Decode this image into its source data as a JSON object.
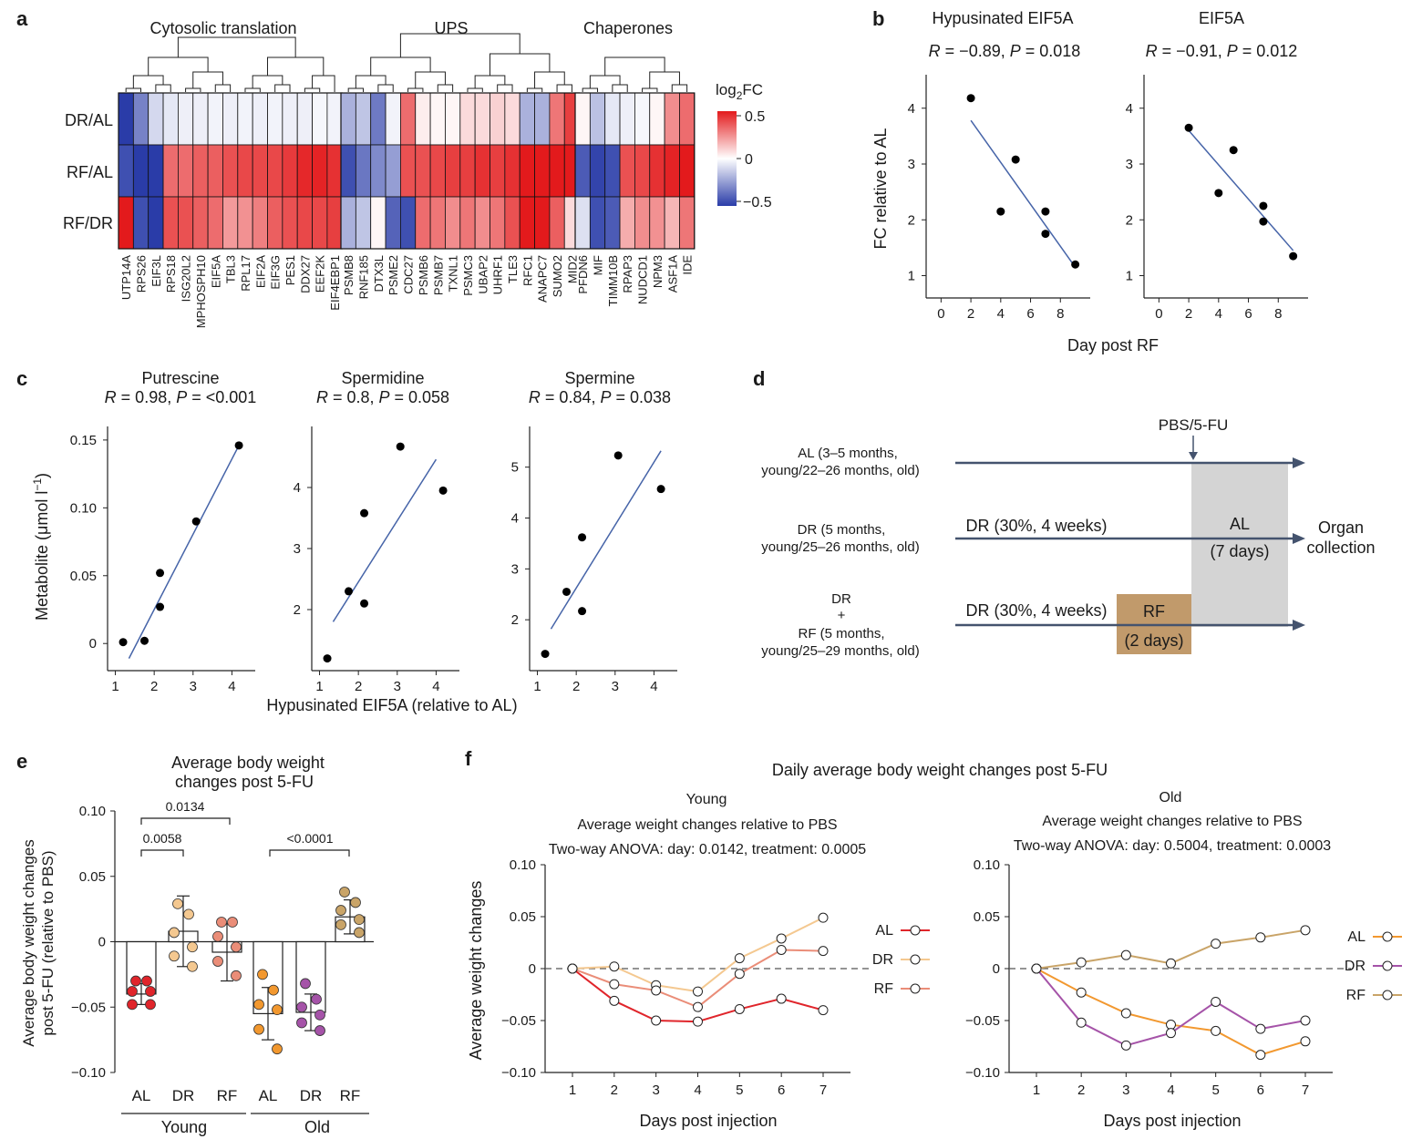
{
  "colors": {
    "red": "#d8262b",
    "blue": "#3d4aa8",
    "line_blue": "#4664a8",
    "arrow": "#44536e",
    "AL_young": "#e0252b",
    "DR_young": "#f4c890",
    "RF_young": "#ea8d78",
    "AL_old": "#f2982f",
    "DR_old": "#a553a8",
    "RF_old": "#c9a468",
    "gray_box": "#d4d4d4",
    "rf_box": "#c19a6b"
  },
  "panel_a": {
    "letter": "a",
    "groups": [
      "Cytosolic translation",
      "UPS",
      "Chaperones"
    ],
    "legend_title_main": "log",
    "legend_title_sub": "2",
    "legend_title_end": "FC",
    "legend_ticks": [
      "0.5",
      "0",
      "−0.5"
    ],
    "rows": [
      "DR/AL",
      "RF/AL",
      "RF/DR"
    ],
    "blocks": [
      {
        "genes": [
          "UTP14A",
          "RPS26",
          "EIF3L",
          "RPS18",
          "ISG20L2",
          "MPHOSPH10",
          "EIF5A",
          "TBL3",
          "RPL17",
          "EIF2A",
          "EIF3G",
          "PES1",
          "DDX27",
          "EEF2K",
          "EIF4EBP1"
        ],
        "values": [
          [
            -0.5,
            -0.32,
            -0.1,
            -0.06,
            -0.04,
            -0.04,
            -0.03,
            -0.04,
            -0.03,
            -0.04,
            -0.03,
            -0.04,
            -0.04,
            -0.02,
            -0.03
          ],
          [
            -0.45,
            -0.5,
            -0.52,
            0.32,
            0.32,
            0.35,
            0.35,
            0.38,
            0.4,
            0.4,
            0.4,
            0.43,
            0.47,
            0.48,
            0.45
          ],
          [
            0.55,
            -0.45,
            -0.5,
            0.38,
            0.38,
            0.35,
            0.32,
            0.22,
            0.24,
            0.28,
            0.35,
            0.38,
            0.4,
            0.4,
            0.42
          ]
        ],
        "dendrogram": "0,1|2,3|4,5|4,5|6,7|6,7|8,9|10,11|10,11|12,13|13,14"
      },
      {
        "genes": [
          "PSMB8",
          "RNF185",
          "DTX3L",
          "PSME2",
          "CDC27",
          "PSMB6",
          "PSMB7",
          "TXNL1",
          "PSMC3",
          "UBAP2",
          "UHRF1",
          "TLE3",
          "RFC1",
          "ANAPC7",
          "SUMO2",
          "MID2"
        ],
        "values": [
          [
            -0.2,
            -0.15,
            -0.34,
            -0.03,
            0.32,
            0.04,
            0.02,
            0.02,
            0.08,
            0.08,
            0.1,
            0.08,
            -0.2,
            -0.2,
            0.3,
            0.42
          ],
          [
            -0.45,
            -0.35,
            -0.3,
            -0.25,
            0.38,
            0.38,
            0.4,
            0.42,
            0.42,
            0.45,
            0.42,
            0.45,
            0.5,
            0.5,
            0.55,
            0.58
          ],
          [
            -0.2,
            -0.15,
            0.02,
            -0.4,
            -0.45,
            0.32,
            0.3,
            0.25,
            0.3,
            0.25,
            0.3,
            0.38,
            0.5,
            0.55,
            0.35,
            0.08
          ]
        ]
      },
      {
        "genes": [
          "PFDN6",
          "MIF",
          "TIMM10B",
          "RPAP3",
          "NUDCD1",
          "NPM3",
          "ASF1A",
          "IDE"
        ],
        "values": [
          [
            0.02,
            -0.16,
            -0.06,
            -0.04,
            -0.02,
            0.02,
            0.25,
            0.32
          ],
          [
            -0.42,
            -0.48,
            -0.45,
            0.38,
            0.4,
            0.45,
            0.48,
            0.52
          ],
          [
            -0.08,
            -0.45,
            -0.42,
            0.18,
            0.25,
            0.24,
            0.16,
            0.3
          ]
        ]
      }
    ]
  },
  "panel_b": {
    "letter": "b",
    "ylabel": "FC relative to AL",
    "xlabel": "Day post RF",
    "plots": [
      {
        "title": "Hypusinated EIF5A",
        "stat_r": "R",
        "stat_r_val": " = −0.89, ",
        "stat_p": "P",
        "stat_p_val": " = 0.018"
      },
      {
        "title": "EIF5A",
        "stat_r": "R",
        "stat_r_val": " = −0.91, ",
        "stat_p": "P",
        "stat_p_val": " = 0.012"
      }
    ],
    "xticks": [
      "0",
      "2",
      "4",
      "6",
      "8"
    ],
    "yticks": [
      "1",
      "2",
      "3",
      "4"
    ]
  },
  "panel_c": {
    "letter": "c",
    "ylabel": "Metabolite (μmol l",
    "ylabel_sup": "−1",
    "ylabel_end": ")",
    "xlabel": "Hypusinated EIF5A (relative to AL)",
    "plots": [
      {
        "title": "Putrescine",
        "stat_r": "R",
        "stat_r_val": " = 0.98, ",
        "stat_p": "P",
        "stat_p_val": " = <0.001",
        "yticks": [
          "0",
          "0.05",
          "0.10",
          "0.15"
        ]
      },
      {
        "title": "Spermidine",
        "stat_r": "R",
        "stat_r_val": " = 0.8, ",
        "stat_p": "P",
        "stat_p_val": " = 0.058",
        "yticks": [
          "2",
          "3",
          "4"
        ]
      },
      {
        "title": "Spermine",
        "stat_r": "R",
        "stat_r_val": " = 0.84, ",
        "stat_p": "P",
        "stat_p_val": " = 0.038",
        "yticks": [
          "2",
          "3",
          "4",
          "5"
        ]
      }
    ],
    "xticks": [
      "1",
      "2",
      "3",
      "4"
    ]
  },
  "panel_d": {
    "letter": "d",
    "injection": "PBS/5-FU",
    "al_label_1": "AL (3–5 months,",
    "al_label_2": "young/22–26 months, old)",
    "dr_label_1": "DR (5 months,",
    "dr_label_2": "young/25–26 months, old)",
    "rf_label_1": "DR",
    "rf_label_2": "+",
    "rf_label_3": "RF (5 months,",
    "rf_label_4": "young/25–29 months, old)",
    "dr_regimen": "DR (30%, 4 weeks)",
    "dr_regimen_2": "DR (30%, 4 weeks)",
    "al_box_1": "AL",
    "al_box_2": "(7 days)",
    "rf_box_1": "RF",
    "rf_box_2": "(2 days)",
    "end_1": "Organ",
    "end_2": "collection"
  },
  "panel_e": {
    "letter": "e",
    "title_1": "Average body weight",
    "title_2": "changes post 5-FU",
    "ylabel_1": "Average body weight changes",
    "ylabel_2": "post 5-FU (relative to PBS)",
    "yticks": [
      "0.10",
      "0.05",
      "0",
      "−0.05",
      "−0.10"
    ],
    "categories": [
      "AL",
      "DR",
      "RF",
      "AL",
      "DR",
      "RF"
    ],
    "group_young": "Young",
    "group_old": "Old",
    "sig_1": "0.0134",
    "sig_2": "0.0058",
    "sig_3": "<0.0001"
  },
  "panel_f": {
    "letter": "f",
    "title": "Daily average body weight changes post 5-FU",
    "ylabel": "Average weight changes",
    "xlabel": "Days post injection",
    "young_title": "Young",
    "young_sub": "Average weight changes relative to PBS",
    "young_anova": "Two-way ANOVA:  day: 0.0142, treatment: 0.0005",
    "old_title": "Old",
    "old_sub": "Average weight changes relative to PBS",
    "old_anova": "Two-way ANOVA:  day: 0.5004, treatment: 0.0003",
    "yticks": [
      "0.10",
      "0.05",
      "0",
      "−0.05",
      "−0.10"
    ],
    "xticks": [
      "1",
      "2",
      "3",
      "4",
      "5",
      "6",
      "7"
    ],
    "legend": [
      "AL",
      "DR",
      "RF"
    ]
  },
  "chart_data": [
    {
      "type": "scatter",
      "title": "Hypusinated EIF5A",
      "xlabel": "Day post RF",
      "ylabel": "FC relative to AL",
      "xlim": [
        -1,
        10
      ],
      "ylim": [
        0.6,
        4.6
      ],
      "x": [
        2,
        4,
        5,
        7,
        7,
        9
      ],
      "y": [
        4.18,
        2.15,
        3.08,
        2.15,
        1.75,
        1.2
      ],
      "fit": [
        [
          2,
          3.78
        ],
        [
          9,
          1.15
        ]
      ]
    },
    {
      "type": "scatter",
      "title": "EIF5A",
      "xlabel": "Day post RF",
      "ylabel": "FC relative to AL",
      "xlim": [
        -1,
        10
      ],
      "ylim": [
        0.6,
        4.6
      ],
      "x": [
        2,
        4,
        5,
        7,
        7,
        9
      ],
      "y": [
        3.65,
        2.48,
        3.25,
        2.25,
        1.97,
        1.35
      ],
      "fit": [
        [
          2,
          3.6
        ],
        [
          9,
          1.45
        ]
      ]
    },
    {
      "type": "scatter",
      "title": "Putrescine",
      "xlabel": "Hypusinated EIF5A (relative to AL)",
      "ylabel": "Metabolite (μmol l−1)",
      "xlim": [
        0.8,
        4.6
      ],
      "ylim": [
        -0.02,
        0.16
      ],
      "x": [
        1.2,
        1.75,
        2.15,
        2.15,
        3.08,
        4.18
      ],
      "y": [
        0.001,
        0.002,
        0.027,
        0.052,
        0.09,
        0.146
      ],
      "fit": [
        [
          1.35,
          -0.011
        ],
        [
          4.18,
          0.146
        ]
      ]
    },
    {
      "type": "scatter",
      "title": "Spermidine",
      "xlabel": "Hypusinated EIF5A (relative to AL)",
      "ylabel": "Metabolite (μmol l−1)",
      "xlim": [
        0.8,
        4.6
      ],
      "ylim": [
        1.0,
        5.0
      ],
      "x": [
        1.2,
        1.75,
        2.15,
        2.15,
        3.08,
        4.18
      ],
      "y": [
        1.2,
        2.3,
        2.1,
        3.58,
        4.67,
        3.95
      ],
      "fit": [
        [
          1.35,
          1.8
        ],
        [
          4.0,
          4.46
        ]
      ]
    },
    {
      "type": "scatter",
      "title": "Spermine",
      "xlabel": "Hypusinated EIF5A (relative to AL)",
      "ylabel": "Metabolite (μmol l−1)",
      "xlim": [
        0.8,
        4.6
      ],
      "ylim": [
        1.0,
        5.8
      ],
      "x": [
        1.2,
        1.75,
        2.15,
        2.15,
        3.08,
        4.18
      ],
      "y": [
        1.33,
        2.55,
        2.17,
        3.62,
        5.23,
        4.57
      ],
      "fit": [
        [
          1.35,
          1.82
        ],
        [
          4.18,
          5.32
        ]
      ]
    },
    {
      "type": "bar",
      "title": "Average body weight changes post 5-FU",
      "ylabel": "Average body weight changes post 5-FU (relative to PBS)",
      "categories": [
        "AL",
        "DR",
        "RF",
        "AL",
        "DR",
        "RF"
      ],
      "groups": [
        "Young",
        "Young",
        "Young",
        "Old",
        "Old",
        "Old"
      ],
      "ylim": [
        -0.1,
        0.1
      ],
      "values": [
        -0.04,
        0.008,
        -0.008,
        -0.055,
        -0.054,
        0.019
      ],
      "errors": [
        0.008,
        0.027,
        0.022,
        0.02,
        0.014,
        0.013
      ],
      "points": [
        [
          -0.03,
          -0.03,
          -0.038,
          -0.038,
          -0.048,
          -0.048
        ],
        [
          0.029,
          0.021,
          0.007,
          -0.004,
          -0.011,
          -0.019
        ],
        [
          0.015,
          0.015,
          0.004,
          -0.004,
          -0.015,
          -0.026
        ],
        [
          -0.025,
          -0.037,
          -0.048,
          -0.052,
          -0.067,
          -0.082
        ],
        [
          -0.032,
          -0.044,
          -0.05,
          -0.056,
          -0.062,
          -0.068
        ],
        [
          0.038,
          0.03,
          0.024,
          0.017,
          0.013,
          0.007
        ]
      ]
    },
    {
      "type": "line",
      "title": "Young",
      "xlabel": "Days post injection",
      "ylabel": "Average weight changes",
      "ylim": [
        -0.1,
        0.1
      ],
      "x": [
        1,
        2,
        3,
        4,
        5,
        6,
        7
      ],
      "series": [
        {
          "name": "AL",
          "values": [
            0,
            -0.031,
            -0.05,
            -0.051,
            -0.039,
            -0.029,
            -0.04
          ]
        },
        {
          "name": "DR",
          "values": [
            0,
            0.002,
            -0.016,
            -0.022,
            0.01,
            0.029,
            0.049
          ]
        },
        {
          "name": "RF",
          "values": [
            0,
            -0.015,
            -0.021,
            -0.037,
            -0.005,
            0.018,
            0.017
          ]
        }
      ]
    },
    {
      "type": "line",
      "title": "Old",
      "xlabel": "Days post injection",
      "ylabel": "Average weight changes",
      "ylim": [
        -0.1,
        0.1
      ],
      "x": [
        1,
        2,
        3,
        4,
        5,
        6,
        7
      ],
      "series": [
        {
          "name": "AL",
          "values": [
            0,
            -0.023,
            -0.043,
            -0.054,
            -0.06,
            -0.083,
            -0.07
          ]
        },
        {
          "name": "DR",
          "values": [
            0,
            -0.052,
            -0.074,
            -0.062,
            -0.032,
            -0.058,
            -0.05
          ]
        },
        {
          "name": "RF",
          "values": [
            0,
            0.006,
            0.013,
            0.005,
            0.024,
            0.03,
            0.037
          ]
        }
      ]
    }
  ]
}
